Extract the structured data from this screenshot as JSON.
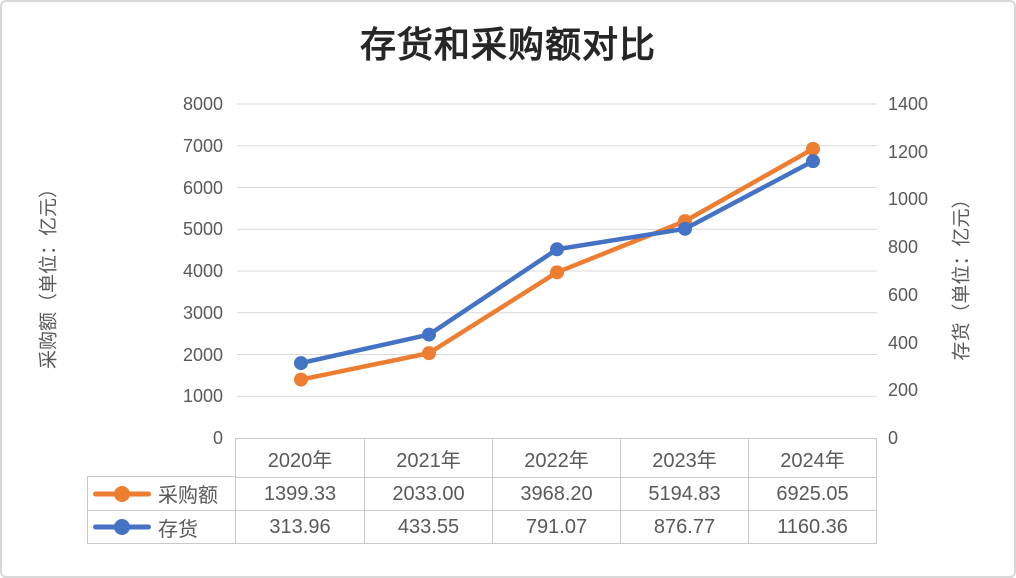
{
  "chart": {
    "title": "存货和采购额对比",
    "left_axis": {
      "title": "采购额（单位：亿元）",
      "ticks": [
        "0",
        "1000",
        "2000",
        "3000",
        "4000",
        "5000",
        "6000",
        "7000",
        "8000"
      ]
    },
    "right_axis": {
      "title": "存货（单位：亿元）",
      "ticks": [
        "0",
        "200",
        "400",
        "600",
        "800",
        "1000",
        "1200",
        "1400"
      ]
    },
    "colors": {
      "purchase": "#ED7D31",
      "inventory": "#4472C4",
      "gridline": "#D9D9D9",
      "table_border": "#C9C9C9",
      "text": "#595959",
      "title_text": "#262626"
    }
  },
  "chart_data": {
    "type": "line",
    "title": "存货和采购额对比",
    "categories": [
      "2020年",
      "2021年",
      "2022年",
      "2023年",
      "2024年"
    ],
    "series": [
      {
        "id": "purchase",
        "name": "采购额",
        "axis": "left",
        "color": "#ED7D31",
        "values": [
          1399.33,
          2033.0,
          3968.2,
          5194.83,
          6925.05
        ],
        "labels": [
          "1399.33",
          "2033.00",
          "3968.20",
          "5194.83",
          "6925.05"
        ]
      },
      {
        "id": "inventory",
        "name": "存货",
        "axis": "right",
        "color": "#4472C4",
        "values": [
          313.96,
          433.55,
          791.07,
          876.77,
          1160.36
        ],
        "labels": [
          "313.96",
          "433.55",
          "791.07",
          "876.77",
          "1160.36"
        ]
      }
    ],
    "left_ylabel": "采购额（单位：亿元）",
    "right_ylabel": "存货（单位：亿元）",
    "left_ylim": [
      0,
      8000
    ],
    "right_ylim": [
      0,
      1400
    ],
    "grid": true,
    "data_table": true,
    "legend_position": "table-left",
    "marker": "circle"
  }
}
